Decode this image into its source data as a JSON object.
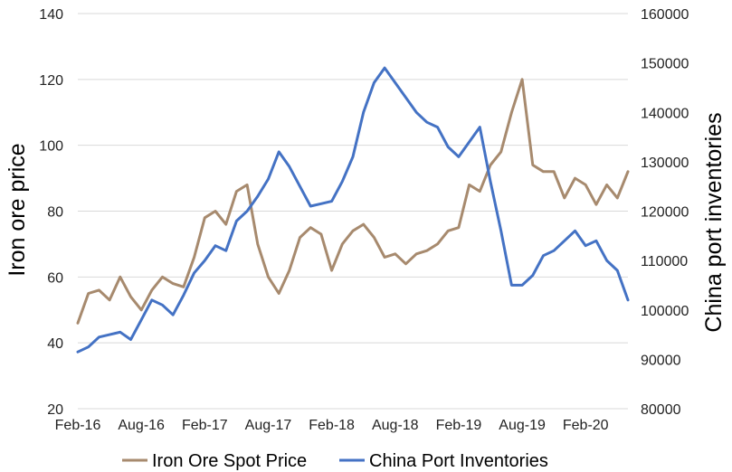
{
  "chart_data": {
    "type": "line",
    "title": "",
    "ylabel": "Iron ore price",
    "y2label": "China port inventories",
    "xlabel": "",
    "ylim": [
      20,
      140
    ],
    "y2lim": [
      80000,
      160000
    ],
    "xlim": [
      "2016-02",
      "2020-06"
    ],
    "grid": "horizontal",
    "legend_position": "bottom",
    "y_ticks": [
      "20",
      "40",
      "60",
      "80",
      "100",
      "120",
      "140"
    ],
    "y2_ticks": [
      "80000",
      "90000",
      "100000",
      "110000",
      "120000",
      "130000",
      "140000",
      "150000",
      "160000"
    ],
    "x_ticks": [
      {
        "label": "Feb-16",
        "date": "2016-02"
      },
      {
        "label": "Aug-16",
        "date": "2016-08"
      },
      {
        "label": "Feb-17",
        "date": "2017-02"
      },
      {
        "label": "Aug-17",
        "date": "2017-08"
      },
      {
        "label": "Feb-18",
        "date": "2018-02"
      },
      {
        "label": "Aug-18",
        "date": "2018-08"
      },
      {
        "label": "Feb-19",
        "date": "2019-02"
      },
      {
        "label": "Aug-19",
        "date": "2019-08"
      },
      {
        "label": "Feb-20",
        "date": "2020-02"
      }
    ],
    "series": [
      {
        "name": "Iron Ore Spot Price",
        "axis": "left",
        "color": "#a78a6e",
        "points": [
          [
            "2016-02",
            46
          ],
          [
            "2016-03",
            55
          ],
          [
            "2016-04",
            56
          ],
          [
            "2016-05",
            53
          ],
          [
            "2016-06",
            60
          ],
          [
            "2016-07",
            54
          ],
          [
            "2016-08",
            50
          ],
          [
            "2016-09",
            56
          ],
          [
            "2016-10",
            60
          ],
          [
            "2016-11",
            58
          ],
          [
            "2016-12",
            57
          ],
          [
            "2017-01",
            66
          ],
          [
            "2017-02",
            78
          ],
          [
            "2017-03",
            80
          ],
          [
            "2017-04",
            76
          ],
          [
            "2017-05",
            86
          ],
          [
            "2017-06",
            88
          ],
          [
            "2017-07",
            70
          ],
          [
            "2017-08",
            60
          ],
          [
            "2017-09",
            55
          ],
          [
            "2017-10",
            62
          ],
          [
            "2017-11",
            72
          ],
          [
            "2017-12",
            75
          ],
          [
            "2018-01",
            73
          ],
          [
            "2018-02",
            62
          ],
          [
            "2018-03",
            70
          ],
          [
            "2018-04",
            74
          ],
          [
            "2018-05",
            76
          ],
          [
            "2018-06",
            72
          ],
          [
            "2018-07",
            66
          ],
          [
            "2018-08",
            67
          ],
          [
            "2018-09",
            64
          ],
          [
            "2018-10",
            67
          ],
          [
            "2018-11",
            68
          ],
          [
            "2018-12",
            70
          ],
          [
            "2019-01",
            74
          ],
          [
            "2019-02",
            75
          ],
          [
            "2019-03",
            88
          ],
          [
            "2019-04",
            86
          ],
          [
            "2019-05",
            94
          ],
          [
            "2019-06",
            98
          ],
          [
            "2019-07",
            110
          ],
          [
            "2019-08",
            120
          ],
          [
            "2019-09",
            94
          ],
          [
            "2019-10",
            92
          ],
          [
            "2019-11",
            92
          ],
          [
            "2019-12",
            84
          ],
          [
            "2020-01",
            90
          ],
          [
            "2020-02",
            88
          ],
          [
            "2020-03",
            82
          ],
          [
            "2020-04",
            88
          ],
          [
            "2020-05",
            84
          ],
          [
            "2020-06",
            92
          ]
        ]
      },
      {
        "name": "China Port Inventories",
        "axis": "right",
        "color": "#4472c4",
        "points": [
          [
            "2016-02",
            91500
          ],
          [
            "2016-03",
            92500
          ],
          [
            "2016-04",
            94500
          ],
          [
            "2016-05",
            95000
          ],
          [
            "2016-06",
            95500
          ],
          [
            "2016-07",
            94000
          ],
          [
            "2016-08",
            98000
          ],
          [
            "2016-09",
            102000
          ],
          [
            "2016-10",
            101000
          ],
          [
            "2016-11",
            99000
          ],
          [
            "2016-12",
            103000
          ],
          [
            "2017-01",
            107500
          ],
          [
            "2017-02",
            110000
          ],
          [
            "2017-03",
            113000
          ],
          [
            "2017-04",
            112000
          ],
          [
            "2017-05",
            118000
          ],
          [
            "2017-06",
            120000
          ],
          [
            "2017-07",
            123000
          ],
          [
            "2017-08",
            126500
          ],
          [
            "2017-09",
            132000
          ],
          [
            "2017-10",
            129000
          ],
          [
            "2017-11",
            125000
          ],
          [
            "2017-12",
            121000
          ],
          [
            "2018-01",
            121500
          ],
          [
            "2018-02",
            122000
          ],
          [
            "2018-03",
            126000
          ],
          [
            "2018-04",
            131000
          ],
          [
            "2018-05",
            140000
          ],
          [
            "2018-06",
            146000
          ],
          [
            "2018-07",
            149000
          ],
          [
            "2018-08",
            146000
          ],
          [
            "2018-09",
            143000
          ],
          [
            "2018-10",
            140000
          ],
          [
            "2018-11",
            138000
          ],
          [
            "2018-12",
            137000
          ],
          [
            "2019-01",
            133000
          ],
          [
            "2019-02",
            131000
          ],
          [
            "2019-03",
            134000
          ],
          [
            "2019-04",
            137000
          ],
          [
            "2019-05",
            126000
          ],
          [
            "2019-06",
            116000
          ],
          [
            "2019-07",
            105000
          ],
          [
            "2019-08",
            105000
          ],
          [
            "2019-09",
            107000
          ],
          [
            "2019-10",
            111000
          ],
          [
            "2019-11",
            112000
          ],
          [
            "2019-12",
            114000
          ],
          [
            "2020-01",
            116000
          ],
          [
            "2020-02",
            113000
          ],
          [
            "2020-03",
            114000
          ],
          [
            "2020-04",
            110000
          ],
          [
            "2020-05",
            108000
          ],
          [
            "2020-06",
            102000
          ]
        ]
      }
    ]
  }
}
